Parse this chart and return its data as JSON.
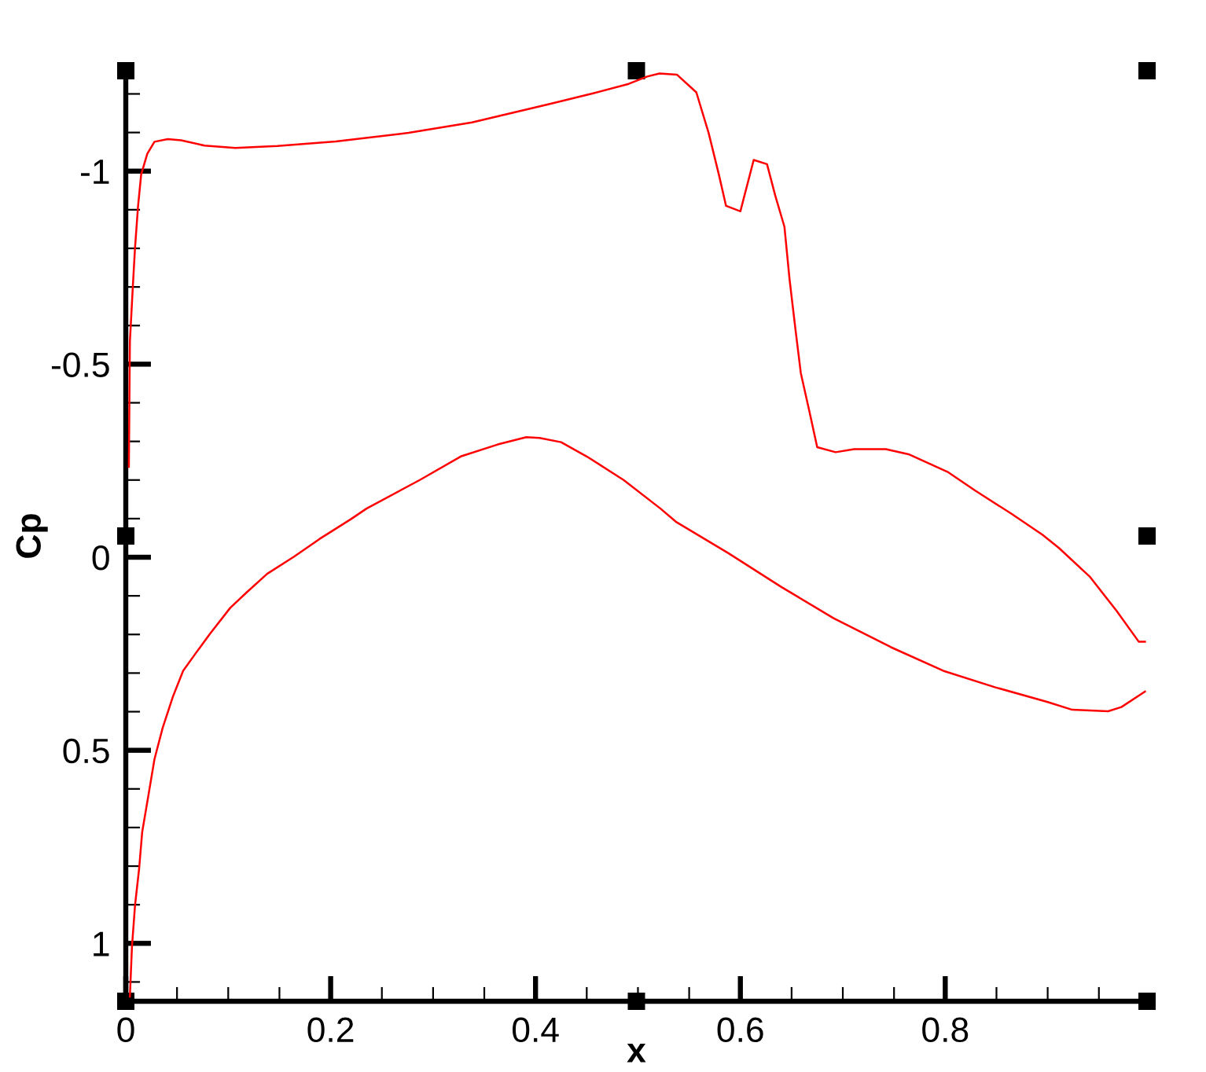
{
  "chart_data": {
    "type": "line",
    "xlabel": "x",
    "ylabel": "Cp",
    "series": [
      {
        "color": "#ff0000",
        "x": [
          0.003,
          0.004,
          0.007,
          0.009,
          0.012,
          0.015,
          0.021,
          0.028,
          0.041,
          0.054,
          0.077,
          0.107,
          0.148,
          0.205,
          0.276,
          0.338,
          0.414,
          0.457,
          0.491,
          0.509,
          0.521,
          0.538,
          0.557,
          0.569,
          0.579,
          0.586,
          0.6,
          0.613,
          0.626,
          0.634,
          0.643,
          0.648,
          0.654,
          0.659,
          0.667,
          0.675,
          0.693,
          0.711,
          0.742,
          0.765,
          0.803,
          0.829,
          0.865,
          0.895,
          0.911,
          0.941,
          0.967,
          0.989,
          0.995
        ],
        "values": [
          -0.234,
          -0.558,
          -0.707,
          -0.801,
          -0.91,
          -0.991,
          -1.045,
          -1.076,
          -1.083,
          -1.08,
          -1.066,
          -1.06,
          -1.065,
          -1.077,
          -1.099,
          -1.126,
          -1.174,
          -1.202,
          -1.226,
          -1.245,
          -1.253,
          -1.25,
          -1.204,
          -1.099,
          -0.991,
          -0.91,
          -0.896,
          -1.029,
          -1.018,
          -0.937,
          -0.856,
          -0.72,
          -0.585,
          -0.477,
          -0.382,
          -0.285,
          -0.272,
          -0.28,
          -0.28,
          -0.266,
          -0.22,
          -0.173,
          -0.112,
          -0.058,
          -0.024,
          0.05,
          0.138,
          0.219,
          0.219
        ]
      },
      {
        "color": "#ff0000",
        "x": [
          0.004,
          0.006,
          0.009,
          0.013,
          0.016,
          0.022,
          0.028,
          0.036,
          0.046,
          0.056,
          0.069,
          0.082,
          0.102,
          0.118,
          0.138,
          0.164,
          0.189,
          0.22,
          0.235,
          0.287,
          0.327,
          0.363,
          0.391,
          0.404,
          0.425,
          0.45,
          0.486,
          0.522,
          0.537,
          0.588,
          0.64,
          0.691,
          0.747,
          0.798,
          0.849,
          0.9,
          0.924,
          0.959,
          0.972,
          0.995
        ],
        "values": [
          1.138,
          1.01,
          0.902,
          0.807,
          0.712,
          0.618,
          0.523,
          0.442,
          0.361,
          0.294,
          0.246,
          0.199,
          0.131,
          0.091,
          0.043,
          -0.001,
          -0.047,
          -0.099,
          -0.126,
          -0.2,
          -0.261,
          -0.292,
          -0.311,
          -0.309,
          -0.298,
          -0.261,
          -0.2,
          -0.126,
          -0.092,
          -0.011,
          0.077,
          0.158,
          0.233,
          0.294,
          0.337,
          0.375,
          0.395,
          0.399,
          0.388,
          0.348
        ]
      }
    ],
    "xlim": [
      0,
      0.997
    ],
    "ylim": [
      1.15,
      -1.26
    ],
    "xticks": [
      0,
      {
        "value": 0.05,
        "label": null
      },
      {
        "value": 0.1,
        "label": null
      },
      {
        "value": 0.15,
        "label": null
      },
      0.2,
      {
        "value": 0.25,
        "label": null
      },
      {
        "value": 0.3,
        "label": null
      },
      {
        "value": 0.35,
        "label": null
      },
      0.4,
      {
        "value": 0.45,
        "label": null
      },
      {
        "value": 0.5,
        "label": null
      },
      {
        "value": 0.55,
        "label": null
      },
      0.6,
      {
        "value": 0.65,
        "label": null
      },
      {
        "value": 0.7,
        "label": null
      },
      {
        "value": 0.75,
        "label": null
      },
      0.8,
      {
        "value": 0.85,
        "label": null
      },
      {
        "value": 0.9,
        "label": null
      },
      {
        "value": 0.95,
        "label": null
      }
    ],
    "yticks": [
      {
        "value": -1.2,
        "label": null
      },
      {
        "value": -1.1,
        "label": null
      },
      -1,
      {
        "value": -0.9,
        "label": null
      },
      {
        "value": -0.8,
        "label": null
      },
      {
        "value": -0.7,
        "label": null
      },
      {
        "value": -0.6,
        "label": null
      },
      -0.5,
      {
        "value": -0.4,
        "label": null
      },
      {
        "value": -0.3,
        "label": null
      },
      {
        "value": -0.2,
        "label": null
      },
      {
        "value": -0.1,
        "label": null
      },
      0,
      {
        "value": 0.1,
        "label": null
      },
      {
        "value": 0.2,
        "label": null
      },
      {
        "value": 0.3,
        "label": null
      },
      {
        "value": 0.4,
        "label": null
      },
      0.5,
      {
        "value": 0.6,
        "label": null
      },
      {
        "value": 0.7,
        "label": null
      },
      {
        "value": 0.8,
        "label": null
      },
      {
        "value": 0.9,
        "label": null
      },
      1,
      {
        "value": 1.1,
        "label": null
      }
    ]
  }
}
